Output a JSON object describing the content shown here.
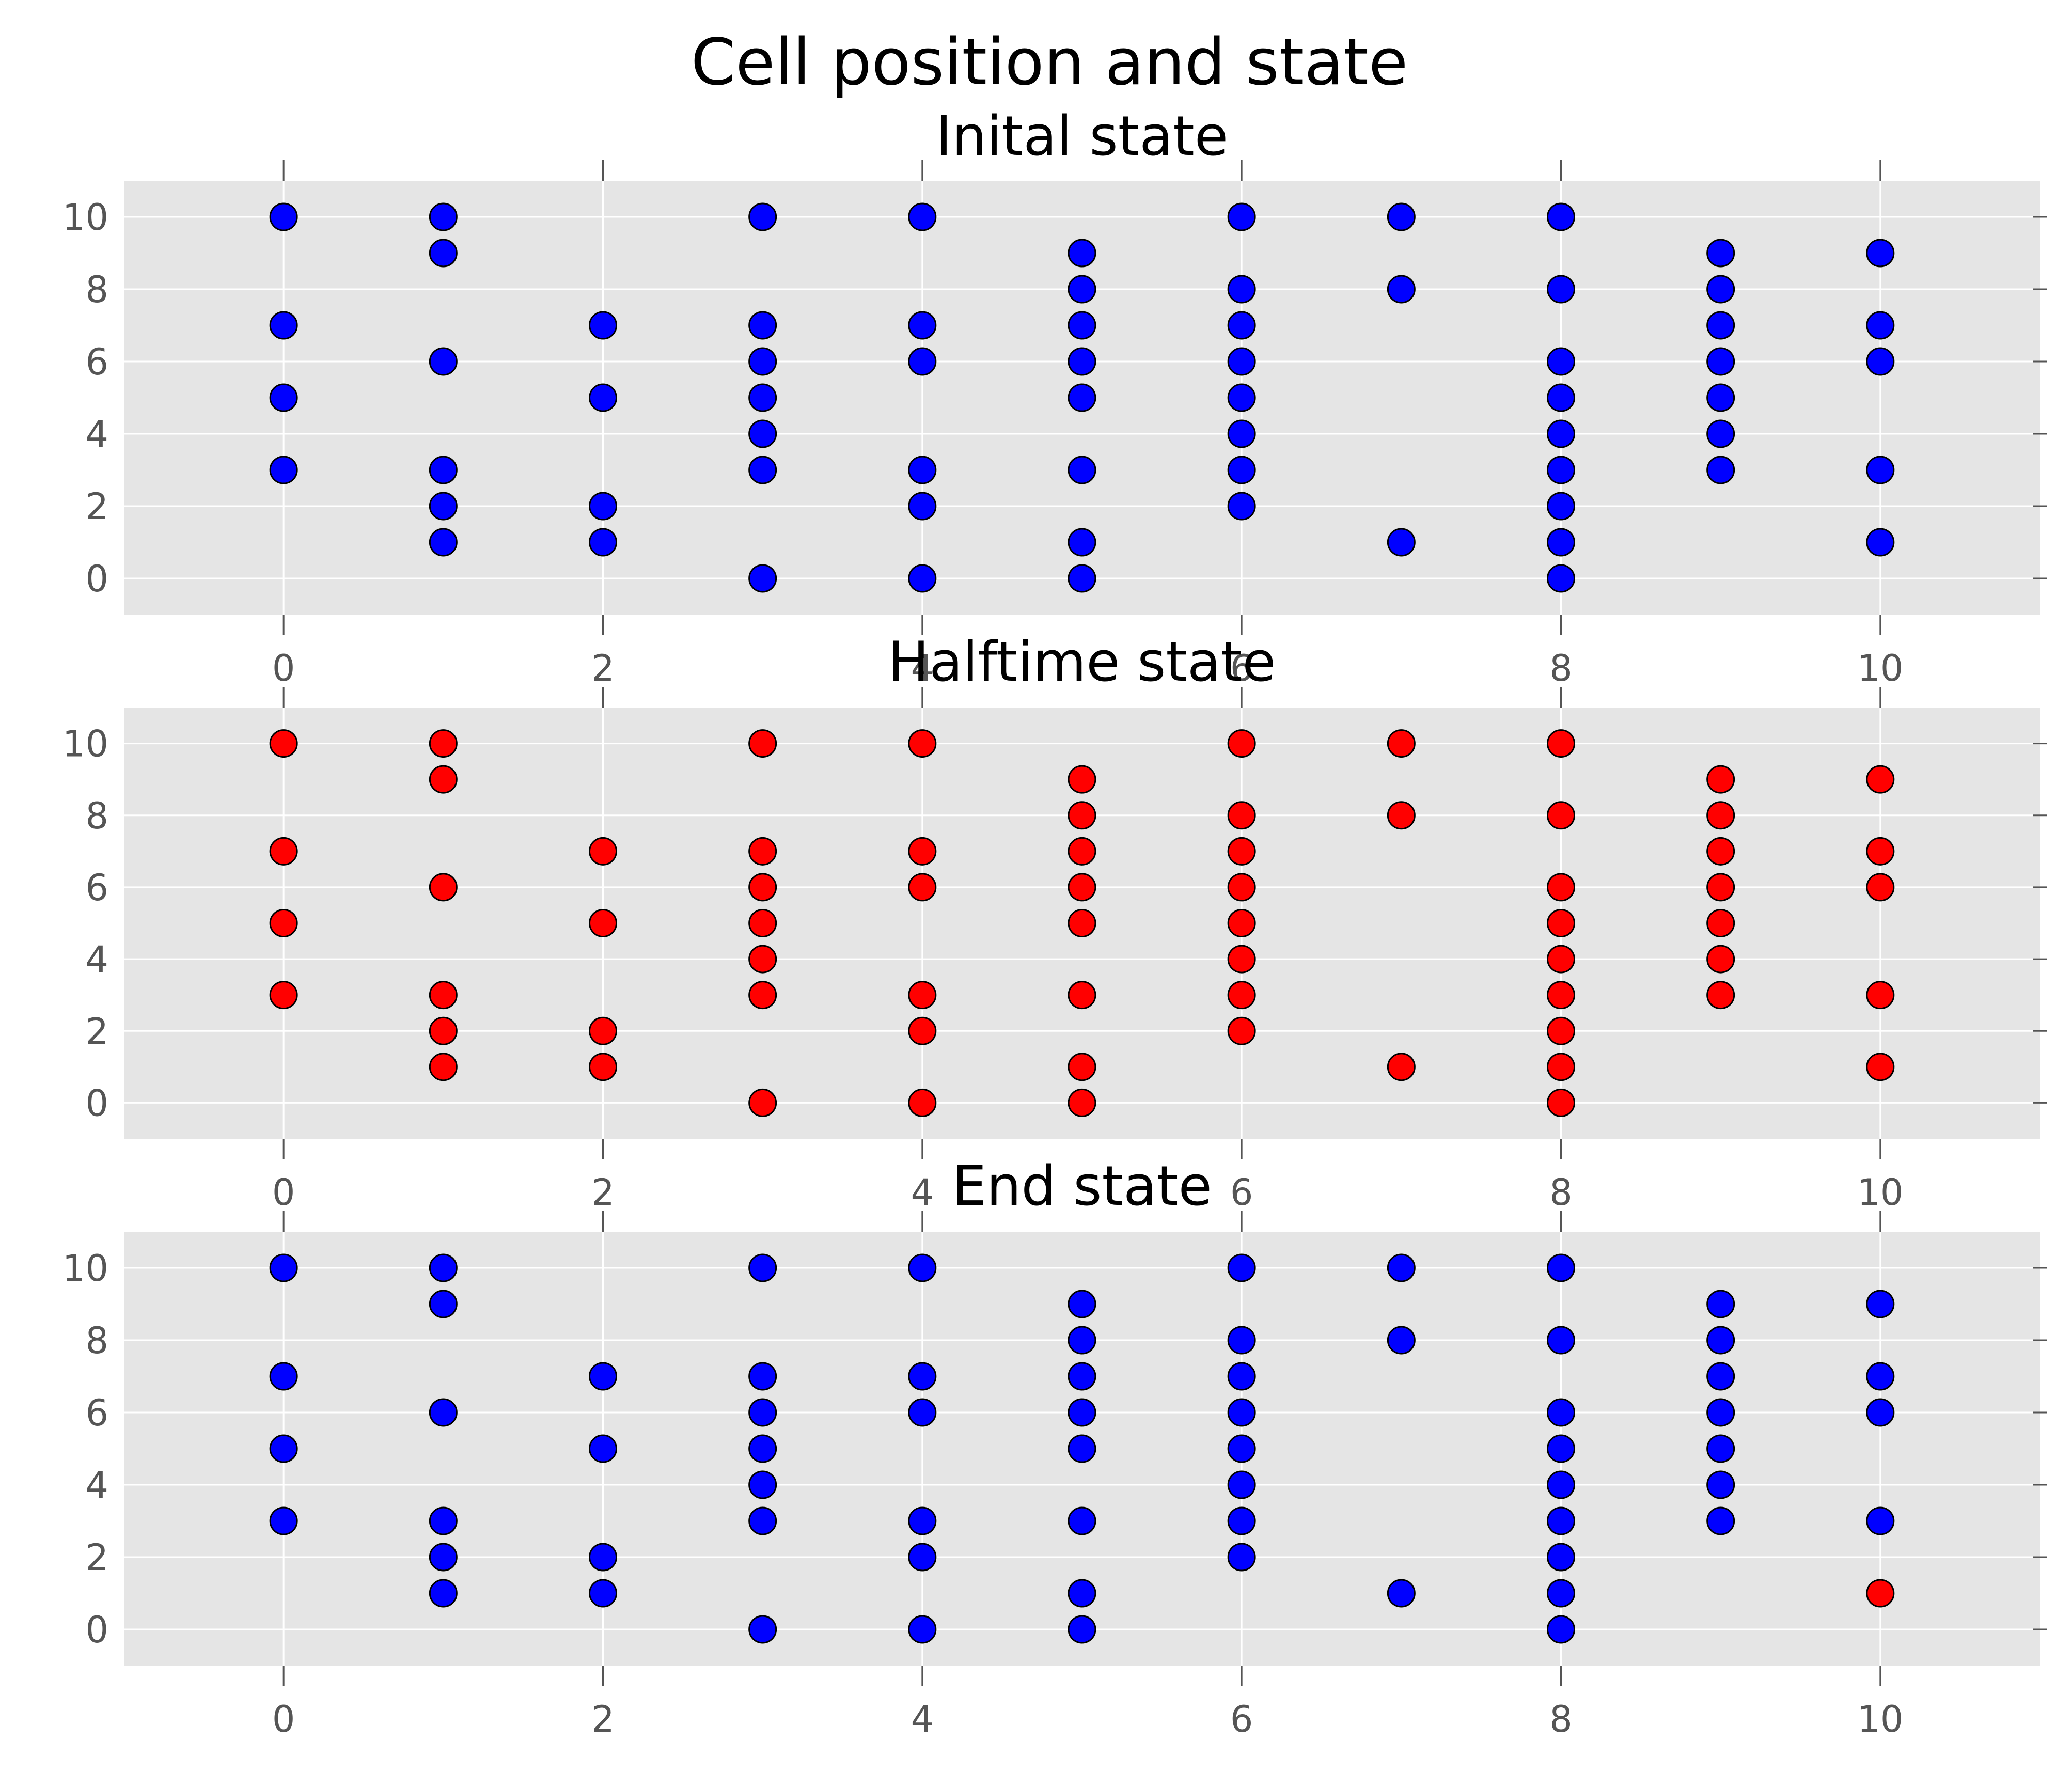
{
  "suptitle": "Cell position and state",
  "chart_data": [
    {
      "type": "scatter",
      "title": "Inital state",
      "xlim": [
        -1,
        11
      ],
      "ylim": [
        -1,
        11
      ],
      "xticks": [
        "0",
        "2",
        "4",
        "6",
        "8",
        "10"
      ],
      "yticks": [
        "0",
        "2",
        "4",
        "6",
        "8",
        "10"
      ],
      "grid": true,
      "colors": {
        "alive": "#0000ff",
        "dead": "#ff0000"
      },
      "columns": [
        {
          "x": 0,
          "blue": [
            10,
            7,
            5,
            3
          ],
          "red": []
        },
        {
          "x": 1,
          "blue": [
            10,
            9,
            6,
            3,
            2,
            1
          ],
          "red": []
        },
        {
          "x": 2,
          "blue": [
            7,
            5,
            2,
            1
          ],
          "red": []
        },
        {
          "x": 3,
          "blue": [
            10,
            7,
            6,
            5,
            4,
            3,
            0
          ],
          "red": []
        },
        {
          "x": 4,
          "blue": [
            10,
            7,
            6,
            3,
            2,
            0
          ],
          "red": []
        },
        {
          "x": 5,
          "blue": [
            9,
            8,
            7,
            6,
            5,
            3,
            1,
            0
          ],
          "red": []
        },
        {
          "x": 6,
          "blue": [
            10,
            8,
            7,
            6,
            5,
            4,
            3,
            2
          ],
          "red": []
        },
        {
          "x": 7,
          "blue": [
            10,
            8,
            1
          ],
          "red": []
        },
        {
          "x": 8,
          "blue": [
            10,
            8,
            6,
            5,
            4,
            3,
            2,
            1,
            0
          ],
          "red": []
        },
        {
          "x": 9,
          "blue": [
            9,
            8,
            7,
            6,
            5,
            4,
            3
          ],
          "red": []
        },
        {
          "x": 10,
          "blue": [
            9,
            7,
            6,
            3,
            1
          ],
          "red": []
        }
      ]
    },
    {
      "type": "scatter",
      "title": "Halftime state",
      "xlim": [
        -1,
        11
      ],
      "ylim": [
        -1,
        11
      ],
      "xticks": [
        "0",
        "2",
        "4",
        "6",
        "8",
        "10"
      ],
      "yticks": [
        "0",
        "2",
        "4",
        "6",
        "8",
        "10"
      ],
      "grid": true,
      "colors": {
        "alive": "#0000ff",
        "dead": "#ff0000"
      },
      "columns": [
        {
          "x": 0,
          "blue": [],
          "red": [
            10,
            7,
            5,
            3
          ]
        },
        {
          "x": 1,
          "blue": [],
          "red": [
            10,
            9,
            6,
            3,
            2,
            1
          ]
        },
        {
          "x": 2,
          "blue": [],
          "red": [
            7,
            5,
            2,
            1
          ]
        },
        {
          "x": 3,
          "blue": [],
          "red": [
            10,
            7,
            6,
            5,
            4,
            3,
            0
          ]
        },
        {
          "x": 4,
          "blue": [],
          "red": [
            10,
            7,
            6,
            3,
            2,
            0
          ]
        },
        {
          "x": 5,
          "blue": [],
          "red": [
            9,
            8,
            7,
            6,
            5,
            3,
            1,
            0
          ]
        },
        {
          "x": 6,
          "blue": [],
          "red": [
            10,
            8,
            7,
            6,
            5,
            4,
            3,
            2
          ]
        },
        {
          "x": 7,
          "blue": [],
          "red": [
            10,
            8,
            1
          ]
        },
        {
          "x": 8,
          "blue": [],
          "red": [
            10,
            8,
            6,
            5,
            4,
            3,
            2,
            1,
            0
          ]
        },
        {
          "x": 9,
          "blue": [],
          "red": [
            9,
            8,
            7,
            6,
            5,
            4,
            3
          ]
        },
        {
          "x": 10,
          "blue": [],
          "red": [
            9,
            7,
            6,
            3,
            1
          ]
        }
      ]
    },
    {
      "type": "scatter",
      "title": "End state",
      "xlim": [
        -1,
        11
      ],
      "ylim": [
        -1,
        11
      ],
      "xticks": [
        "0",
        "2",
        "4",
        "6",
        "8",
        "10"
      ],
      "yticks": [
        "0",
        "2",
        "4",
        "6",
        "8",
        "10"
      ],
      "grid": true,
      "colors": {
        "alive": "#0000ff",
        "dead": "#ff0000"
      },
      "columns": [
        {
          "x": 0,
          "blue": [
            10,
            7,
            5,
            3
          ],
          "red": []
        },
        {
          "x": 1,
          "blue": [
            10,
            9,
            6,
            3,
            2,
            1
          ],
          "red": []
        },
        {
          "x": 2,
          "blue": [
            7,
            5,
            2,
            1
          ],
          "red": []
        },
        {
          "x": 3,
          "blue": [
            10,
            7,
            6,
            5,
            4,
            3,
            0
          ],
          "red": []
        },
        {
          "x": 4,
          "blue": [
            10,
            7,
            6,
            3,
            2,
            0
          ],
          "red": []
        },
        {
          "x": 5,
          "blue": [
            9,
            8,
            7,
            6,
            5,
            3,
            1,
            0
          ],
          "red": []
        },
        {
          "x": 6,
          "blue": [
            10,
            8,
            7,
            6,
            5,
            4,
            3,
            2
          ],
          "red": []
        },
        {
          "x": 7,
          "blue": [
            10,
            8,
            1
          ],
          "red": []
        },
        {
          "x": 8,
          "blue": [
            10,
            8,
            6,
            5,
            4,
            3,
            2,
            1,
            0
          ],
          "red": []
        },
        {
          "x": 9,
          "blue": [
            9,
            8,
            7,
            6,
            5,
            4,
            3
          ],
          "red": []
        },
        {
          "x": 10,
          "blue": [
            9,
            7,
            6,
            3
          ],
          "red": [
            1
          ]
        }
      ]
    }
  ]
}
